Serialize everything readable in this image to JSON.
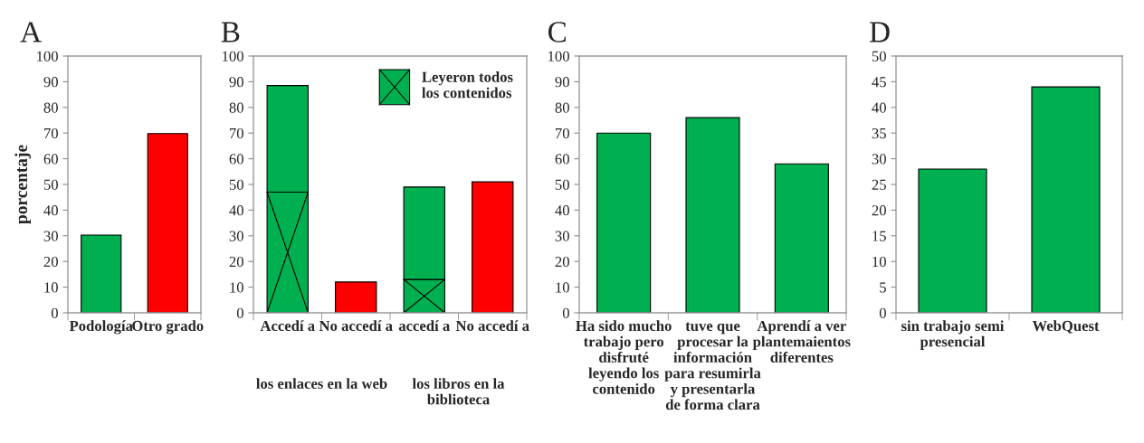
{
  "chart_data": [
    {
      "type": "bar",
      "title": "A",
      "ylabel": "porcentaje",
      "categories": [
        "Podología",
        "Otro grado"
      ],
      "values": [
        30.3,
        69.8
      ],
      "colors": [
        "#00b050",
        "#ff0000"
      ],
      "ylim": [
        0,
        100
      ],
      "yticks": [
        0,
        10,
        20,
        30,
        40,
        50,
        60,
        70,
        80,
        90,
        100
      ],
      "grid": false,
      "legend": false
    },
    {
      "type": "bar",
      "title": "B",
      "stacked": true,
      "categories": [
        "Accedí a",
        "No accedí a",
        "accedí a",
        "No accedí a"
      ],
      "series": [
        {
          "name": "Leyeron todos\nlos contenidos",
          "color": "#00b050",
          "values": [
            47,
            null,
            13,
            null
          ]
        },
        {
          "colors": [
            "#00b050",
            "#ff0000",
            "#00b050",
            "#ff0000"
          ],
          "values": [
            41.5,
            12,
            36,
            51
          ]
        }
      ],
      "annotations": [
        "los enlaces en la web",
        "los libros en la\nbiblioteca"
      ],
      "ylim": [
        0,
        100
      ],
      "yticks": [
        0,
        10,
        20,
        30,
        40,
        50,
        60,
        70,
        80,
        90,
        100
      ],
      "grid": false,
      "legend": "top right"
    },
    {
      "type": "bar",
      "title": "C",
      "categories": [
        "Ha sido mucho\ntrabajo pero\ndisfruté\nleyendo los\ncontenido",
        "tuve que\nprocesar la\ninformación\npara resumirla\ny presentarla\nde forma clara",
        "Aprendí a ver\nplantemaientos\ndiferentes"
      ],
      "values": [
        70,
        76,
        58
      ],
      "color": "#00b050",
      "ylim": [
        0,
        100
      ],
      "yticks": [
        0,
        10,
        20,
        30,
        40,
        50,
        60,
        70,
        80,
        90,
        100
      ],
      "grid": false,
      "legend": false
    },
    {
      "type": "bar",
      "title": "D",
      "categories": [
        "sin trabajo semi\npresencial",
        "WebQuest"
      ],
      "values": [
        28,
        44
      ],
      "color": "#00b050",
      "ylim": [
        0,
        50
      ],
      "yticks": [
        0,
        5,
        10,
        15,
        20,
        25,
        30,
        35,
        40,
        45,
        50
      ],
      "grid": false,
      "legend": false
    }
  ]
}
